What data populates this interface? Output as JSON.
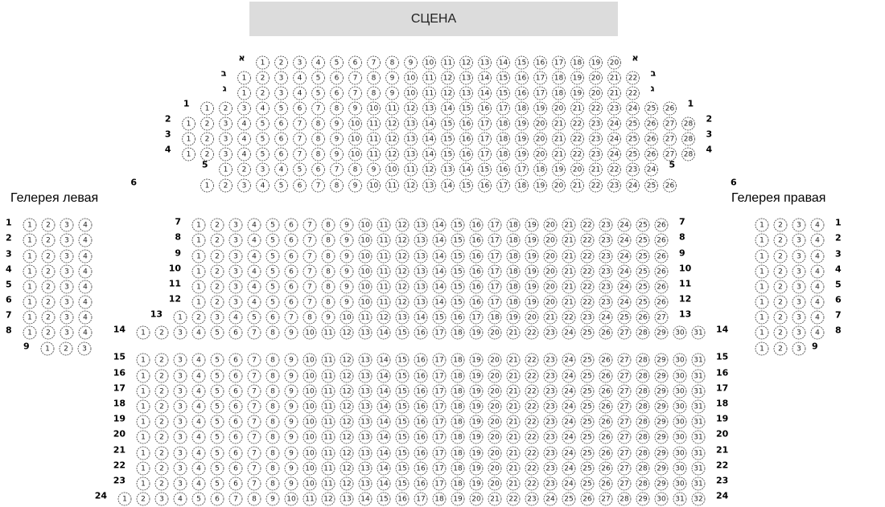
{
  "stage": {
    "label": "СЦЕНА"
  },
  "galleries": {
    "left_title": "Гелерея левая",
    "right_title": "Гелерея правая"
  },
  "colors": {
    "stage_bg": "#dcdcdc",
    "seat_stroke": "#555555",
    "text": "#000000"
  },
  "balcony_rows": [
    {
      "label": "א",
      "seats": 20
    },
    {
      "label": "ב",
      "seats": 22
    },
    {
      "label": "ג",
      "seats": 22
    },
    {
      "label": "1",
      "seats": 26
    },
    {
      "label": "2",
      "seats": 28
    },
    {
      "label": "3",
      "seats": 28
    },
    {
      "label": "4",
      "seats": 28
    },
    {
      "label": "5",
      "seats": 24
    },
    {
      "label": "6",
      "seats": 26
    }
  ],
  "stalls_rows": [
    {
      "label": "7",
      "seats": 26
    },
    {
      "label": "8",
      "seats": 26
    },
    {
      "label": "9",
      "seats": 26
    },
    {
      "label": "10",
      "seats": 26
    },
    {
      "label": "11",
      "seats": 26
    },
    {
      "label": "12",
      "seats": 26
    },
    {
      "label": "13",
      "seats": 27
    },
    {
      "label": "14",
      "seats": 31
    },
    {
      "label": "15",
      "seats": 31
    },
    {
      "label": "16",
      "seats": 31
    },
    {
      "label": "17",
      "seats": 31
    },
    {
      "label": "18",
      "seats": 31
    },
    {
      "label": "19",
      "seats": 31
    },
    {
      "label": "20",
      "seats": 31
    },
    {
      "label": "21",
      "seats": 31
    },
    {
      "label": "22",
      "seats": 31
    },
    {
      "label": "23",
      "seats": 31
    },
    {
      "label": "24",
      "seats": 32
    }
  ],
  "gallery_left_rows": [
    {
      "label": "1",
      "seats": 4
    },
    {
      "label": "2",
      "seats": 4
    },
    {
      "label": "3",
      "seats": 4
    },
    {
      "label": "4",
      "seats": 4
    },
    {
      "label": "5",
      "seats": 4
    },
    {
      "label": "6",
      "seats": 4
    },
    {
      "label": "7",
      "seats": 4
    },
    {
      "label": "8",
      "seats": 4
    },
    {
      "label": "9",
      "seats": 3
    }
  ],
  "gallery_right_rows": [
    {
      "label": "1",
      "seats": 4
    },
    {
      "label": "2",
      "seats": 4
    },
    {
      "label": "3",
      "seats": 4
    },
    {
      "label": "4",
      "seats": 4
    },
    {
      "label": "5",
      "seats": 4
    },
    {
      "label": "6",
      "seats": 4
    },
    {
      "label": "7",
      "seats": 4
    },
    {
      "label": "8",
      "seats": 4
    },
    {
      "label": "9",
      "seats": 3
    }
  ]
}
